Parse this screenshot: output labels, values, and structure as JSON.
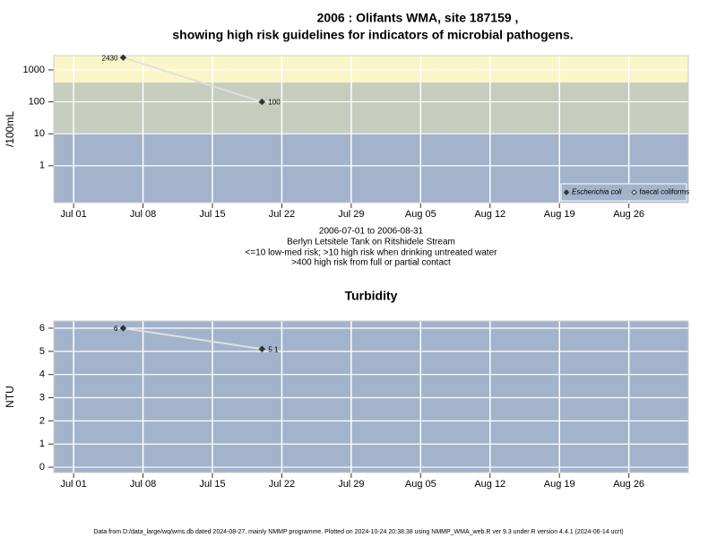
{
  "title": [
    "2006 : Olifants WMA, site 187159 ,",
    "showing high risk guidelines for indicators of microbial pathogens."
  ],
  "captions": [
    "2006-07-01 to 2006-08-31",
    "Berlyn Letsitele Tank on Ritshidele Stream",
    "<=10 low-med risk; >10 high risk when drinking untreated water",
    ">400 high risk from full or partial contact"
  ],
  "footer": "Data from D:/data_large/wq/wms.db dated 2024-08-27, mainly NMMP programme. Plotted on 2024-10-24 20:38:38 using NMMP_WMA_web.R ver 9.3 under R version 4.4.1 (2024-06-14 ucrt)",
  "chart_data": [
    {
      "type": "line",
      "ylabel": "/100mL",
      "log_y": true,
      "grid": true,
      "background": "#a3b3cc",
      "bands": [
        {
          "above": 10,
          "color": "#c5cdbf"
        },
        {
          "above": 400,
          "color": "#fbf6c8"
        }
      ],
      "x": [
        "2006-07-06",
        "2006-07-20"
      ],
      "series": [
        {
          "name": "Escherichia coli",
          "color": "#333333",
          "marker": "filled",
          "values": [
            2430,
            100
          ]
        },
        {
          "name": "faecal coliforms",
          "color": "#333333",
          "marker": "open",
          "values": [
            null,
            null
          ]
        }
      ],
      "legend": "bottom right",
      "xlim": [
        "2006-06-29",
        "2006-09-01"
      ],
      "xticks": [
        {
          "value": "2006-07-01",
          "label": "Jul 01"
        },
        {
          "value": "2006-07-08",
          "label": "Jul 08"
        },
        {
          "value": "2006-07-15",
          "label": "Jul 15"
        },
        {
          "value": "2006-07-22",
          "label": "Jul 22"
        },
        {
          "value": "2006-07-29",
          "label": "Jul 29"
        },
        {
          "value": "2006-08-05",
          "label": "Aug 05"
        },
        {
          "value": "2006-08-12",
          "label": "Aug 12"
        },
        {
          "value": "2006-08-19",
          "label": "Aug 19"
        },
        {
          "value": "2006-08-26",
          "label": "Aug 26"
        }
      ],
      "ylim": [
        0.07,
        2800
      ],
      "yticks": [
        1,
        10,
        100,
        1000
      ]
    },
    {
      "type": "line",
      "title": "Turbidity",
      "ylabel": "NTU",
      "log_y": false,
      "grid": true,
      "background": "#a3b3cc",
      "x": [
        "2006-07-06",
        "2006-07-20"
      ],
      "series": [
        {
          "name": "Turbidity",
          "color": "#333333",
          "marker": "filled",
          "values": [
            6,
            5.1
          ]
        }
      ],
      "xlim": [
        "2006-06-29",
        "2006-09-01"
      ],
      "xticks": [
        {
          "value": "2006-07-01",
          "label": "Jul 01"
        },
        {
          "value": "2006-07-08",
          "label": "Jul 08"
        },
        {
          "value": "2006-07-15",
          "label": "Jul 15"
        },
        {
          "value": "2006-07-22",
          "label": "Jul 22"
        },
        {
          "value": "2006-07-29",
          "label": "Jul 29"
        },
        {
          "value": "2006-08-05",
          "label": "Aug 05"
        },
        {
          "value": "2006-08-12",
          "label": "Aug 12"
        },
        {
          "value": "2006-08-19",
          "label": "Aug 19"
        },
        {
          "value": "2006-08-26",
          "label": "Aug 26"
        }
      ],
      "ylim": [
        -0.23,
        6.31
      ],
      "yticks": [
        0,
        1,
        2,
        3,
        4,
        5,
        6
      ]
    }
  ]
}
